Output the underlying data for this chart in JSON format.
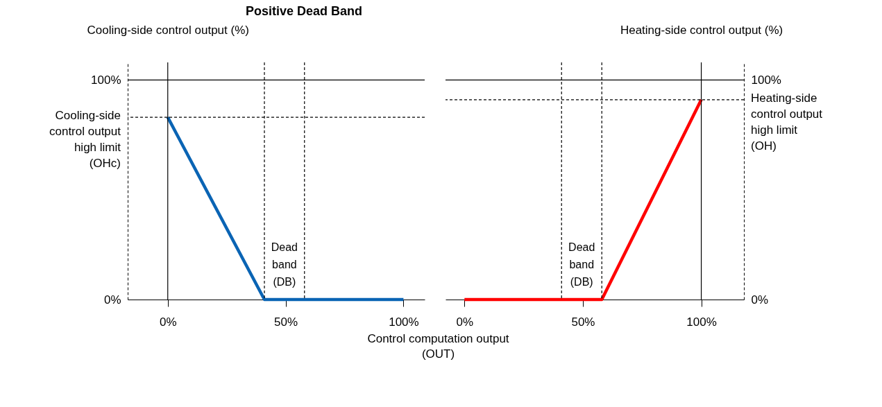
{
  "chart_data": [
    {
      "type": "line",
      "title": "Positive Dead Band",
      "ylabel": "Cooling-side control output (%)",
      "xlabel": "Control computation output (OUT)",
      "xlim": [
        -17,
        109
      ],
      "xticks": [
        {
          "value": 0,
          "label": "0%"
        },
        {
          "value": 50,
          "label": "50%"
        },
        {
          "value": 100,
          "label": "100%"
        }
      ],
      "ylim": [
        0,
        108
      ],
      "yticks": [
        {
          "value": 0,
          "label": "0%"
        },
        {
          "value": 100,
          "label": "100%"
        }
      ],
      "series": [
        {
          "color": "#0a64b4",
          "x": [
            0,
            41,
            100
          ],
          "values": [
            83,
            0,
            0
          ]
        }
      ],
      "ref_lines": [
        {
          "axis": "x",
          "value": 0,
          "line_style": "solid"
        },
        {
          "axis": "y",
          "value": 100,
          "line_style": "solid"
        },
        {
          "axis": "y",
          "value": 83,
          "line_style": "dashed"
        },
        {
          "axis": "x",
          "value": 41,
          "line_style": "dashed"
        },
        {
          "axis": "x",
          "value": 58,
          "line_style": "dashed"
        }
      ],
      "annotations": [
        "Cooling-side control output high limit (OHc)",
        "Dead band (DB)"
      ]
    },
    {
      "type": "line",
      "y2label": "Heating-side control output (%)",
      "xlim": [
        -8,
        118
      ],
      "xticks": [
        {
          "value": 0,
          "label": "0%"
        },
        {
          "value": 50,
          "label": "50%"
        },
        {
          "value": 100,
          "label": "100%"
        }
      ],
      "y2lim": [
        0,
        108
      ],
      "y2ticks": [
        {
          "value": 0,
          "label": "0%"
        },
        {
          "value": 100,
          "label": "100%"
        }
      ],
      "series": [
        {
          "color": "#ff0000",
          "axis": "y2",
          "x": [
            0,
            58,
            100
          ],
          "values": [
            0,
            0,
            91
          ]
        }
      ],
      "ref_lines": [
        {
          "axis": "x",
          "value": 100,
          "line_style": "solid"
        },
        {
          "axis": "y2",
          "value": 100,
          "line_style": "solid"
        },
        {
          "axis": "y2",
          "value": 91,
          "line_style": "dashed"
        },
        {
          "axis": "x",
          "value": 41,
          "line_style": "dashed"
        },
        {
          "axis": "x",
          "value": 58,
          "line_style": "dashed"
        }
      ],
      "annotations": [
        "Heating-side control output high limit (OH)",
        "Dead band (DB)"
      ]
    }
  ]
}
